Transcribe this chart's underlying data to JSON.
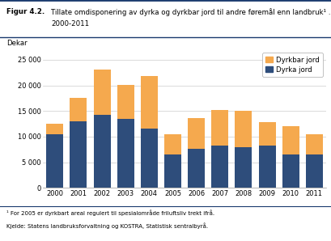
{
  "years": [
    2000,
    2001,
    2002,
    2003,
    2004,
    2005,
    2006,
    2007,
    2008,
    2009,
    2010,
    2011
  ],
  "dyrka_jord": [
    10500,
    13000,
    14200,
    13400,
    11500,
    6500,
    7600,
    8300,
    7900,
    8200,
    6500,
    6500
  ],
  "dyrkbar_jord": [
    2000,
    4500,
    8800,
    6700,
    10300,
    4000,
    6000,
    6900,
    7100,
    4700,
    5600,
    4000
  ],
  "color_dyrka": "#2e4d7b",
  "color_dyrkbar": "#f5a94e",
  "ylabel": "Dekar",
  "ylim": [
    0,
    27000
  ],
  "yticks": [
    0,
    5000,
    10000,
    15000,
    20000,
    25000
  ],
  "ytick_labels": [
    "0",
    "5 000",
    "10 000",
    "15 000",
    "20 000",
    "25 000"
  ],
  "legend_dyrkbar": "Dyrkbar jord",
  "legend_dyrka": "Dyrka jord",
  "figur_label": "Figur 4.2.",
  "title_text": "Tillate omdisponering av dyrka og dyrkbar jord til andre føremål enn landbruk¹ .",
  "title_line2": "2000-2011",
  "footnote1": "¹ For 2005 er dyrkbart areal regulert til spesialområde friluftsliv trekt ifrå.",
  "footnote2": "Kjelde: Statens landbruksforvaltning og KOSTRA, Statistisk sentralbyrå.",
  "bar_edge_color": "none",
  "grid_color": "#cccccc",
  "title_blue": "#1a3a6e",
  "bg_color": "#ffffff"
}
